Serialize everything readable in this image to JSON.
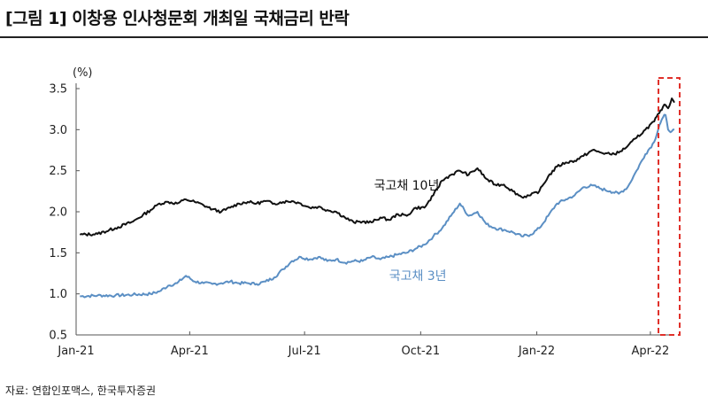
{
  "figure": {
    "title": "[그림 1] 이창용 인사청문회 개최일 국채금리 반락",
    "source": "자료: 연합인포맥스, 한국투자증권"
  },
  "colors": {
    "series_10y": "#111111",
    "series_3y": "#5b8fc4",
    "highlight_box": "#e0302a",
    "axis": "#555555"
  },
  "chart_data": {
    "type": "line",
    "unit_label": "(%)",
    "ylim": [
      0.5,
      3.5
    ],
    "yticks": [
      "0.5",
      "1.0",
      "1.5",
      "2.0",
      "2.5",
      "3.0",
      "3.5"
    ],
    "xtick_labels": [
      "Jan-21",
      "Apr-21",
      "Jul-21",
      "Oct-21",
      "Jan-22",
      "Apr-22"
    ],
    "xtick_dates": [
      "2021-01-01",
      "2021-04-01",
      "2021-07-01",
      "2021-10-01",
      "2022-01-01",
      "2022-04-01"
    ],
    "xrange": [
      "2021-01-01",
      "2022-04-20"
    ],
    "grid": false,
    "legend": "inline labels",
    "series": [
      {
        "name": "국고채 10년",
        "points": [
          [
            "2021-01-04",
            1.72
          ],
          [
            "2021-01-18",
            1.73
          ],
          [
            "2021-02-01",
            1.8
          ],
          [
            "2021-02-15",
            1.88
          ],
          [
            "2021-03-01",
            2.02
          ],
          [
            "2021-03-08",
            2.1
          ],
          [
            "2021-03-15",
            2.12
          ],
          [
            "2021-03-22",
            2.1
          ],
          [
            "2021-03-29",
            2.15
          ],
          [
            "2021-04-05",
            2.12
          ],
          [
            "2021-04-12",
            2.08
          ],
          [
            "2021-04-19",
            2.03
          ],
          [
            "2021-04-26",
            2.0
          ],
          [
            "2021-05-03",
            2.05
          ],
          [
            "2021-05-10",
            2.1
          ],
          [
            "2021-05-17",
            2.12
          ],
          [
            "2021-05-24",
            2.1
          ],
          [
            "2021-05-31",
            2.13
          ],
          [
            "2021-06-07",
            2.1
          ],
          [
            "2021-06-14",
            2.12
          ],
          [
            "2021-06-21",
            2.13
          ],
          [
            "2021-06-28",
            2.1
          ],
          [
            "2021-07-05",
            2.05
          ],
          [
            "2021-07-12",
            2.06
          ],
          [
            "2021-07-19",
            2.02
          ],
          [
            "2021-07-26",
            2.0
          ],
          [
            "2021-08-02",
            1.93
          ],
          [
            "2021-08-09",
            1.87
          ],
          [
            "2021-08-16",
            1.88
          ],
          [
            "2021-08-23",
            1.87
          ],
          [
            "2021-08-30",
            1.93
          ],
          [
            "2021-09-06",
            1.9
          ],
          [
            "2021-09-13",
            1.97
          ],
          [
            "2021-09-20",
            1.95
          ],
          [
            "2021-09-27",
            2.05
          ],
          [
            "2021-10-04",
            2.05
          ],
          [
            "2021-10-11",
            2.2
          ],
          [
            "2021-10-18",
            2.38
          ],
          [
            "2021-10-25",
            2.45
          ],
          [
            "2021-11-01",
            2.5
          ],
          [
            "2021-11-08",
            2.45
          ],
          [
            "2021-11-15",
            2.53
          ],
          [
            "2021-11-22",
            2.4
          ],
          [
            "2021-11-29",
            2.33
          ],
          [
            "2021-12-06",
            2.33
          ],
          [
            "2021-12-13",
            2.25
          ],
          [
            "2021-12-20",
            2.18
          ],
          [
            "2021-12-27",
            2.2
          ],
          [
            "2022-01-03",
            2.25
          ],
          [
            "2022-01-10",
            2.43
          ],
          [
            "2022-01-17",
            2.55
          ],
          [
            "2022-01-24",
            2.6
          ],
          [
            "2022-01-31",
            2.62
          ],
          [
            "2022-02-07",
            2.68
          ],
          [
            "2022-02-14",
            2.75
          ],
          [
            "2022-02-21",
            2.72
          ],
          [
            "2022-02-28",
            2.7
          ],
          [
            "2022-03-07",
            2.72
          ],
          [
            "2022-03-14",
            2.8
          ],
          [
            "2022-03-21",
            2.9
          ],
          [
            "2022-03-28",
            3.0
          ],
          [
            "2022-04-04",
            3.1
          ],
          [
            "2022-04-08",
            3.2
          ],
          [
            "2022-04-11",
            3.28
          ],
          [
            "2022-04-13",
            3.3
          ],
          [
            "2022-04-15",
            3.26
          ],
          [
            "2022-04-18",
            3.38
          ],
          [
            "2022-04-20",
            3.33
          ]
        ]
      },
      {
        "name": "국고채 3년",
        "points": [
          [
            "2021-01-04",
            0.97
          ],
          [
            "2021-01-18",
            0.98
          ],
          [
            "2021-02-01",
            0.98
          ],
          [
            "2021-02-15",
            0.99
          ],
          [
            "2021-03-01",
            1.0
          ],
          [
            "2021-03-08",
            1.03
          ],
          [
            "2021-03-15",
            1.1
          ],
          [
            "2021-03-22",
            1.13
          ],
          [
            "2021-03-29",
            1.22
          ],
          [
            "2021-04-05",
            1.15
          ],
          [
            "2021-04-12",
            1.13
          ],
          [
            "2021-04-19",
            1.12
          ],
          [
            "2021-04-26",
            1.13
          ],
          [
            "2021-05-03",
            1.15
          ],
          [
            "2021-05-10",
            1.13
          ],
          [
            "2021-05-17",
            1.13
          ],
          [
            "2021-05-24",
            1.12
          ],
          [
            "2021-05-31",
            1.15
          ],
          [
            "2021-06-07",
            1.2
          ],
          [
            "2021-06-14",
            1.3
          ],
          [
            "2021-06-21",
            1.4
          ],
          [
            "2021-06-28",
            1.45
          ],
          [
            "2021-07-05",
            1.42
          ],
          [
            "2021-07-12",
            1.45
          ],
          [
            "2021-07-19",
            1.4
          ],
          [
            "2021-07-26",
            1.42
          ],
          [
            "2021-08-02",
            1.38
          ],
          [
            "2021-08-09",
            1.4
          ],
          [
            "2021-08-16",
            1.4
          ],
          [
            "2021-08-23",
            1.45
          ],
          [
            "2021-08-30",
            1.42
          ],
          [
            "2021-09-06",
            1.45
          ],
          [
            "2021-09-13",
            1.48
          ],
          [
            "2021-09-20",
            1.5
          ],
          [
            "2021-09-27",
            1.55
          ],
          [
            "2021-10-04",
            1.6
          ],
          [
            "2021-10-11",
            1.7
          ],
          [
            "2021-10-18",
            1.8
          ],
          [
            "2021-10-25",
            1.95
          ],
          [
            "2021-11-01",
            2.1
          ],
          [
            "2021-11-08",
            1.95
          ],
          [
            "2021-11-15",
            2.0
          ],
          [
            "2021-11-22",
            1.85
          ],
          [
            "2021-11-29",
            1.8
          ],
          [
            "2021-12-06",
            1.78
          ],
          [
            "2021-12-13",
            1.75
          ],
          [
            "2021-12-20",
            1.7
          ],
          [
            "2021-12-27",
            1.72
          ],
          [
            "2022-01-03",
            1.8
          ],
          [
            "2022-01-10",
            1.95
          ],
          [
            "2022-01-17",
            2.1
          ],
          [
            "2022-01-24",
            2.15
          ],
          [
            "2022-01-31",
            2.2
          ],
          [
            "2022-02-07",
            2.3
          ],
          [
            "2022-02-14",
            2.32
          ],
          [
            "2022-02-21",
            2.28
          ],
          [
            "2022-02-28",
            2.25
          ],
          [
            "2022-03-07",
            2.22
          ],
          [
            "2022-03-14",
            2.3
          ],
          [
            "2022-03-21",
            2.5
          ],
          [
            "2022-03-28",
            2.7
          ],
          [
            "2022-04-04",
            2.85
          ],
          [
            "2022-04-08",
            3.05
          ],
          [
            "2022-04-11",
            3.15
          ],
          [
            "2022-04-13",
            3.18
          ],
          [
            "2022-04-15",
            3.0
          ],
          [
            "2022-04-18",
            2.98
          ],
          [
            "2022-04-20",
            3.0
          ]
        ]
      }
    ],
    "highlight": {
      "from": "2022-04-13",
      "to": "2022-04-20",
      "note": "dashed red box around latest days"
    }
  }
}
